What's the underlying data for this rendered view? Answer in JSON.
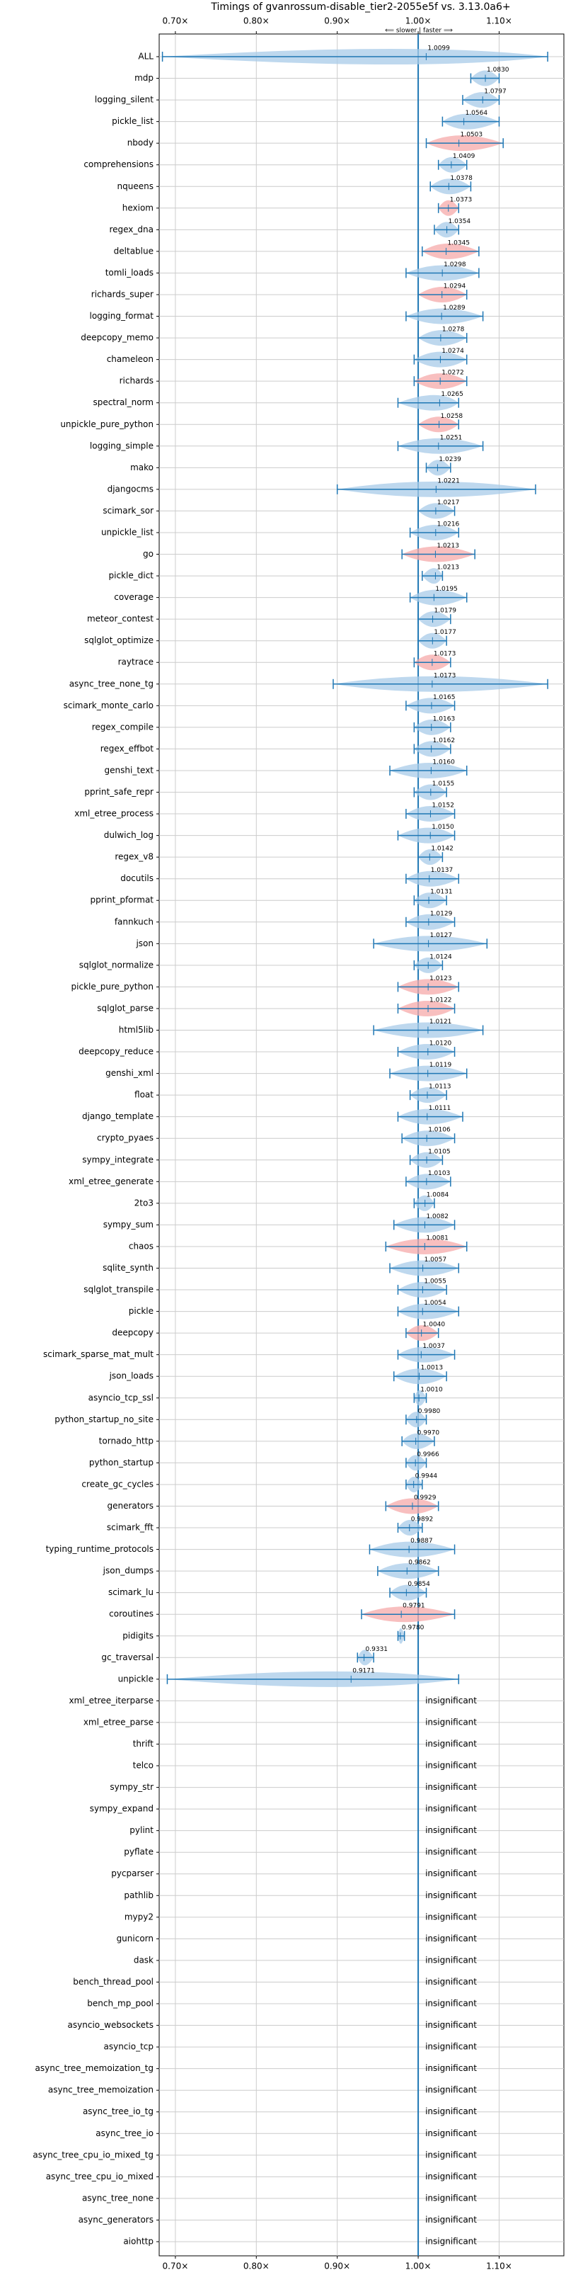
{
  "chart_data": {
    "type": "violin",
    "title": "Timings of gvanrossum-disable_tier2-2055e5f vs. 3.13.0a6+",
    "annotation": "⟸ slower | faster ⟹",
    "xlim": [
      0.68,
      1.18
    ],
    "xticks": [
      {
        "value": 0.7,
        "label": "0.70×"
      },
      {
        "value": 0.8,
        "label": "0.80×"
      },
      {
        "value": 0.9,
        "label": "0.90×"
      },
      {
        "value": 1.0,
        "label": "1.00×"
      },
      {
        "value": 1.1,
        "label": "1.10×"
      }
    ],
    "reference": 1,
    "grid": true,
    "reference_color": "#1f77b4",
    "categories": [
      "ALL",
      "mdp",
      "logging_silent",
      "pickle_list",
      "nbody",
      "comprehensions",
      "nqueens",
      "hexiom",
      "regex_dna",
      "deltablue",
      "tomli_loads",
      "richards_super",
      "logging_format",
      "deepcopy_memo",
      "chameleon",
      "richards",
      "spectral_norm",
      "unpickle_pure_python",
      "logging_simple",
      "mako",
      "djangocms",
      "scimark_sor",
      "unpickle_list",
      "go",
      "pickle_dict",
      "coverage",
      "meteor_contest",
      "sqlglot_optimize",
      "raytrace",
      "async_tree_none_tg",
      "scimark_monte_carlo",
      "regex_compile",
      "regex_effbot",
      "genshi_text",
      "pprint_safe_repr",
      "xml_etree_process",
      "dulwich_log",
      "regex_v8",
      "docutils",
      "pprint_pformat",
      "fannkuch",
      "json",
      "sqlglot_normalize",
      "pickle_pure_python",
      "sqlglot_parse",
      "html5lib",
      "deepcopy_reduce",
      "genshi_xml",
      "float",
      "django_template",
      "crypto_pyaes",
      "sympy_integrate",
      "xml_etree_generate",
      "2to3",
      "sympy_sum",
      "chaos",
      "sqlite_synth",
      "sqlglot_transpile",
      "pickle",
      "deepcopy",
      "scimark_sparse_mat_mult",
      "json_loads",
      "asyncio_tcp_ssl",
      "python_startup_no_site",
      "tornado_http",
      "python_startup",
      "create_gc_cycles",
      "generators",
      "scimark_fft",
      "typing_runtime_protocols",
      "json_dumps",
      "scimark_lu",
      "coroutines",
      "pidigits",
      "gc_traversal",
      "unpickle",
      "xml_etree_iterparse",
      "xml_etree_parse",
      "thrift",
      "telco",
      "sympy_str",
      "sympy_expand",
      "pylint",
      "pyflate",
      "pycparser",
      "pathlib",
      "mypy2",
      "gunicorn",
      "dask",
      "bench_thread_pool",
      "bench_mp_pool",
      "asyncio_websockets",
      "asyncio_tcp",
      "async_tree_memoization_tg",
      "async_tree_memoization",
      "async_tree_io_tg",
      "async_tree_io",
      "async_tree_cpu_io_mixed_tg",
      "async_tree_cpu_io_mixed",
      "async_tree_none",
      "async_generators",
      "aiohttp"
    ],
    "values": [
      1.0099,
      1.083,
      1.0797,
      1.0564,
      1.0503,
      1.0409,
      1.0378,
      1.0373,
      1.0354,
      1.0345,
      1.0298,
      1.0294,
      1.0289,
      1.0278,
      1.0274,
      1.0272,
      1.0265,
      1.0258,
      1.0251,
      1.0239,
      1.0221,
      1.0217,
      1.0216,
      1.0213,
      1.0213,
      1.0195,
      1.0179,
      1.0177,
      1.0173,
      1.0173,
      1.0165,
      1.0163,
      1.0162,
      1.016,
      1.0155,
      1.0152,
      1.015,
      1.0142,
      1.0137,
      1.0131,
      1.0129,
      1.0127,
      1.0124,
      1.0123,
      1.0122,
      1.0121,
      1.012,
      1.0119,
      1.0113,
      1.0111,
      1.0106,
      1.0105,
      1.0103,
      1.0084,
      1.0082,
      1.0081,
      1.0057,
      1.0055,
      1.0054,
      1.004,
      1.0037,
      1.0013,
      1.001,
      0.998,
      0.997,
      0.9966,
      0.9944,
      0.9929,
      0.9892,
      0.9887,
      0.9862,
      0.9854,
      0.9791,
      0.978,
      0.9331,
      0.9171,
      null,
      null,
      null,
      null,
      null,
      null,
      null,
      null,
      null,
      null,
      null,
      null,
      null,
      null,
      null,
      null,
      null,
      null,
      null,
      null,
      null,
      null,
      null,
      null,
      null,
      null
    ],
    "value_labels": [
      "1.0099",
      "1.0830",
      "1.0797",
      "1.0564",
      "1.0503",
      "1.0409",
      "1.0378",
      "1.0373",
      "1.0354",
      "1.0345",
      "1.0298",
      "1.0294",
      "1.0289",
      "1.0278",
      "1.0274",
      "1.0272",
      "1.0265",
      "1.0258",
      "1.0251",
      "1.0239",
      "1.0221",
      "1.0217",
      "1.0216",
      "1.0213",
      "1.0213",
      "1.0195",
      "1.0179",
      "1.0177",
      "1.0173",
      "1.0173",
      "1.0165",
      "1.0163",
      "1.0162",
      "1.0160",
      "1.0155",
      "1.0152",
      "1.0150",
      "1.0142",
      "1.0137",
      "1.0131",
      "1.0129",
      "1.0127",
      "1.0124",
      "1.0123",
      "1.0122",
      "1.0121",
      "1.0120",
      "1.0119",
      "1.0113",
      "1.0111",
      "1.0106",
      "1.0105",
      "1.0103",
      "1.0084",
      "1.0082",
      "1.0081",
      "1.0057",
      "1.0055",
      "1.0054",
      "1.0040",
      "1.0037",
      "1.0013",
      "1.0010",
      "0.9980",
      "0.9970",
      "0.9966",
      "0.9944",
      "0.9929",
      "0.9892",
      "0.9887",
      "0.9862",
      "0.9854",
      "0.9791",
      "0.9780",
      "0.9331",
      "0.9171",
      "insignificant",
      "insignificant",
      "insignificant",
      "insignificant",
      "insignificant",
      "insignificant",
      "insignificant",
      "insignificant",
      "insignificant",
      "insignificant",
      "insignificant",
      "insignificant",
      "insignificant",
      "insignificant",
      "insignificant",
      "insignificant",
      "insignificant",
      "insignificant",
      "insignificant",
      "insignificant",
      "insignificant",
      "insignificant",
      "insignificant",
      "insignificant",
      "insignificant",
      "insignificant"
    ],
    "ranges": [
      [
        0.684,
        1.16
      ],
      [
        1.065,
        1.1
      ],
      [
        1.055,
        1.1
      ],
      [
        1.03,
        1.1
      ],
      [
        1.01,
        1.105
      ],
      [
        1.025,
        1.06
      ],
      [
        1.015,
        1.065
      ],
      [
        1.025,
        1.05
      ],
      [
        1.02,
        1.05
      ],
      [
        1.005,
        1.075
      ],
      [
        0.985,
        1.075
      ],
      [
        1.0,
        1.06
      ],
      [
        0.985,
        1.08
      ],
      [
        1.0,
        1.06
      ],
      [
        0.995,
        1.06
      ],
      [
        0.995,
        1.06
      ],
      [
        0.975,
        1.05
      ],
      [
        1.0,
        1.05
      ],
      [
        0.975,
        1.08
      ],
      [
        1.01,
        1.04
      ],
      [
        0.9,
        1.145
      ],
      [
        1.0,
        1.045
      ],
      [
        0.99,
        1.05
      ],
      [
        0.98,
        1.07
      ],
      [
        1.005,
        1.03
      ],
      [
        0.99,
        1.06
      ],
      [
        1.0,
        1.04
      ],
      [
        1.0,
        1.035
      ],
      [
        0.995,
        1.04
      ],
      [
        0.895,
        1.16
      ],
      [
        0.985,
        1.045
      ],
      [
        0.995,
        1.04
      ],
      [
        0.995,
        1.04
      ],
      [
        0.965,
        1.06
      ],
      [
        0.995,
        1.035
      ],
      [
        0.985,
        1.045
      ],
      [
        0.975,
        1.045
      ],
      [
        1.0,
        1.03
      ],
      [
        0.985,
        1.05
      ],
      [
        0.995,
        1.035
      ],
      [
        0.985,
        1.045
      ],
      [
        0.945,
        1.085
      ],
      [
        0.995,
        1.03
      ],
      [
        0.975,
        1.05
      ],
      [
        0.975,
        1.045
      ],
      [
        0.945,
        1.08
      ],
      [
        0.975,
        1.045
      ],
      [
        0.965,
        1.06
      ],
      [
        0.99,
        1.035
      ],
      [
        0.975,
        1.055
      ],
      [
        0.98,
        1.045
      ],
      [
        0.99,
        1.03
      ],
      [
        0.985,
        1.04
      ],
      [
        0.995,
        1.02
      ],
      [
        0.97,
        1.045
      ],
      [
        0.96,
        1.06
      ],
      [
        0.965,
        1.05
      ],
      [
        0.975,
        1.035
      ],
      [
        0.975,
        1.05
      ],
      [
        0.985,
        1.025
      ],
      [
        0.975,
        1.045
      ],
      [
        0.97,
        1.035
      ],
      [
        0.995,
        1.01
      ],
      [
        0.985,
        1.01
      ],
      [
        0.98,
        1.02
      ],
      [
        0.985,
        1.01
      ],
      [
        0.985,
        1.005
      ],
      [
        0.96,
        1.025
      ],
      [
        0.975,
        1.005
      ],
      [
        0.94,
        1.045
      ],
      [
        0.95,
        1.025
      ],
      [
        0.965,
        1.01
      ],
      [
        0.93,
        1.045
      ],
      [
        0.975,
        0.983
      ],
      [
        0.925,
        0.945
      ],
      [
        0.69,
        1.05
      ],
      null,
      null,
      null,
      null,
      null,
      null,
      null,
      null,
      null,
      null,
      null,
      null,
      null,
      null,
      null,
      null,
      null,
      null,
      null,
      null,
      null,
      null,
      null,
      null,
      null,
      null
    ],
    "colors": [
      "#a8cbe8",
      "#a8cbe8",
      "#a8cbe8",
      "#a8cbe8",
      "#f5a9a9",
      "#a8cbe8",
      "#a8cbe8",
      "#f5a9a9",
      "#a8cbe8",
      "#f5a9a9",
      "#a8cbe8",
      "#f5a9a9",
      "#a8cbe8",
      "#a8cbe8",
      "#a8cbe8",
      "#f5a9a9",
      "#a8cbe8",
      "#f5a9a9",
      "#a8cbe8",
      "#a8cbe8",
      "#a8cbe8",
      "#a8cbe8",
      "#a8cbe8",
      "#f5a9a9",
      "#a8cbe8",
      "#a8cbe8",
      "#a8cbe8",
      "#a8cbe8",
      "#f5a9a9",
      "#a8cbe8",
      "#a8cbe8",
      "#a8cbe8",
      "#a8cbe8",
      "#a8cbe8",
      "#a8cbe8",
      "#a8cbe8",
      "#a8cbe8",
      "#a8cbe8",
      "#a8cbe8",
      "#a8cbe8",
      "#a8cbe8",
      "#a8cbe8",
      "#a8cbe8",
      "#f5a9a9",
      "#f5a9a9",
      "#a8cbe8",
      "#a8cbe8",
      "#a8cbe8",
      "#a8cbe8",
      "#a8cbe8",
      "#a8cbe8",
      "#a8cbe8",
      "#a8cbe8",
      "#a8cbe8",
      "#a8cbe8",
      "#f5a9a9",
      "#a8cbe8",
      "#a8cbe8",
      "#a8cbe8",
      "#f5a9a9",
      "#a8cbe8",
      "#a8cbe8",
      "#a8cbe8",
      "#a8cbe8",
      "#a8cbe8",
      "#a8cbe8",
      "#a8cbe8",
      "#f5a9a9",
      "#a8cbe8",
      "#a8cbe8",
      "#a8cbe8",
      "#a8cbe8",
      "#f5a9a9",
      "#a8cbe8",
      "#a8cbe8",
      "#a8cbe8",
      null,
      null,
      null,
      null,
      null,
      null,
      null,
      null,
      null,
      null,
      null,
      null,
      null,
      null,
      null,
      null,
      null,
      null,
      null,
      null,
      null,
      null,
      null,
      null,
      null,
      null
    ],
    "whisker_color": "#1f77b4"
  }
}
